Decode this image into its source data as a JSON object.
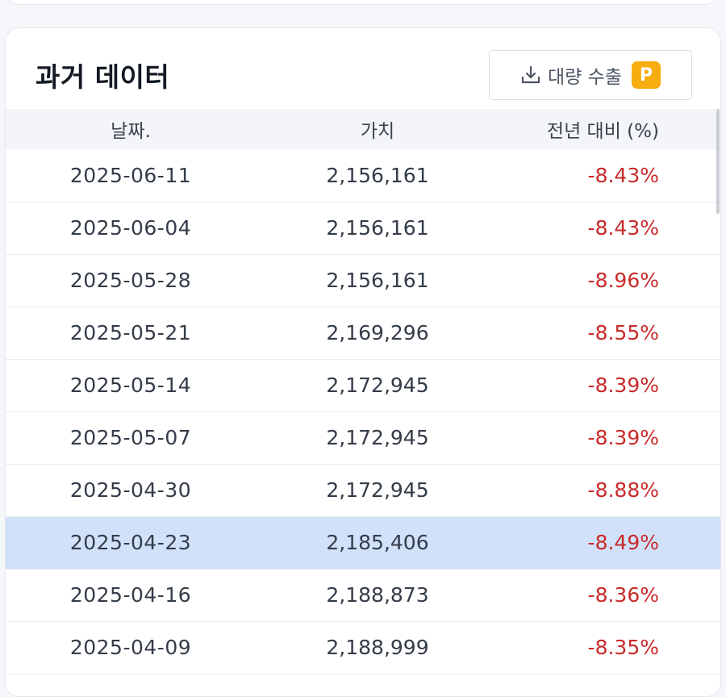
{
  "card": {
    "title": "과거 데이터",
    "export": {
      "label": "대량 수출",
      "badge": "P",
      "icon": "download-icon"
    }
  },
  "table": {
    "columns": {
      "date": "날짜.",
      "value": "가치",
      "change": "전년 대비 (%)"
    },
    "rows": [
      {
        "date": "2025-06-11",
        "value": "2,156,161",
        "change": "-8.43%"
      },
      {
        "date": "2025-06-04",
        "value": "2,156,161",
        "change": "-8.43%"
      },
      {
        "date": "2025-05-28",
        "value": "2,156,161",
        "change": "-8.96%"
      },
      {
        "date": "2025-05-21",
        "value": "2,169,296",
        "change": "-8.55%"
      },
      {
        "date": "2025-05-14",
        "value": "2,172,945",
        "change": "-8.39%"
      },
      {
        "date": "2025-05-07",
        "value": "2,172,945",
        "change": "-8.39%"
      },
      {
        "date": "2025-04-30",
        "value": "2,172,945",
        "change": "-8.88%"
      },
      {
        "date": "2025-04-23",
        "value": "2,185,406",
        "change": "-8.49%"
      },
      {
        "date": "2025-04-16",
        "value": "2,188,873",
        "change": "-8.36%"
      },
      {
        "date": "2025-04-09",
        "value": "2,188,999",
        "change": "-8.35%"
      }
    ],
    "selected_row": 7
  },
  "colors": {
    "negative": "#c92a2a",
    "selected_row": "#d1e1fa",
    "premium_badge": "#f7ad0e",
    "header_bg": "#f3f5f8"
  }
}
